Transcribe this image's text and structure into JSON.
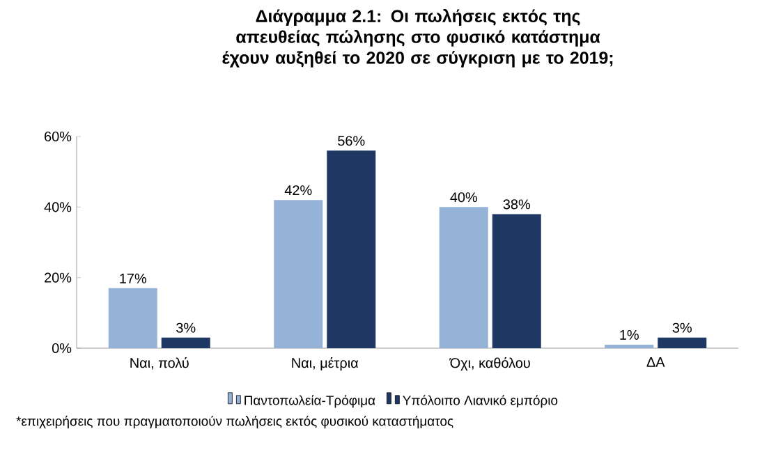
{
  "chart_data": {
    "type": "bar",
    "title": "Διάγραμμα 2.1: Οι πωλήσεις εκτός της απευθείας πώλησης στο φυσικό κατάστημα έχουν αυξηθεί το 2020 σε σύγκριση με το 2019;",
    "categories": [
      "Ναι, πολύ",
      "Ναι, μέτρια",
      "Όχι, καθόλου",
      "ΔΑ"
    ],
    "series": [
      {
        "name": "Παντοπωλεία-Τρόφιμα",
        "color": "#95b3d7",
        "values": [
          17,
          42,
          40,
          1
        ],
        "value_labels": [
          "17%",
          "42%",
          "40%",
          "1%"
        ]
      },
      {
        "name": "Υπόλοιπο Λιανικό εμπόριο",
        "color": "#1f3864",
        "values": [
          3,
          56,
          38,
          3
        ],
        "value_labels": [
          "3%",
          "56%",
          "38%",
          "3%"
        ]
      }
    ],
    "ylim": [
      0,
      60
    ],
    "yticks": [
      {
        "value": 0,
        "label": "0%"
      },
      {
        "value": 20,
        "label": "20%"
      },
      {
        "value": 40,
        "label": "40%"
      },
      {
        "value": 60,
        "label": "60%"
      }
    ],
    "legend": "bottom",
    "grid": false,
    "annotations": [
      "*επιχειρήσεις που πραγματοποιούν πωλήσεις εκτός φυσικού καταστήματος"
    ]
  }
}
